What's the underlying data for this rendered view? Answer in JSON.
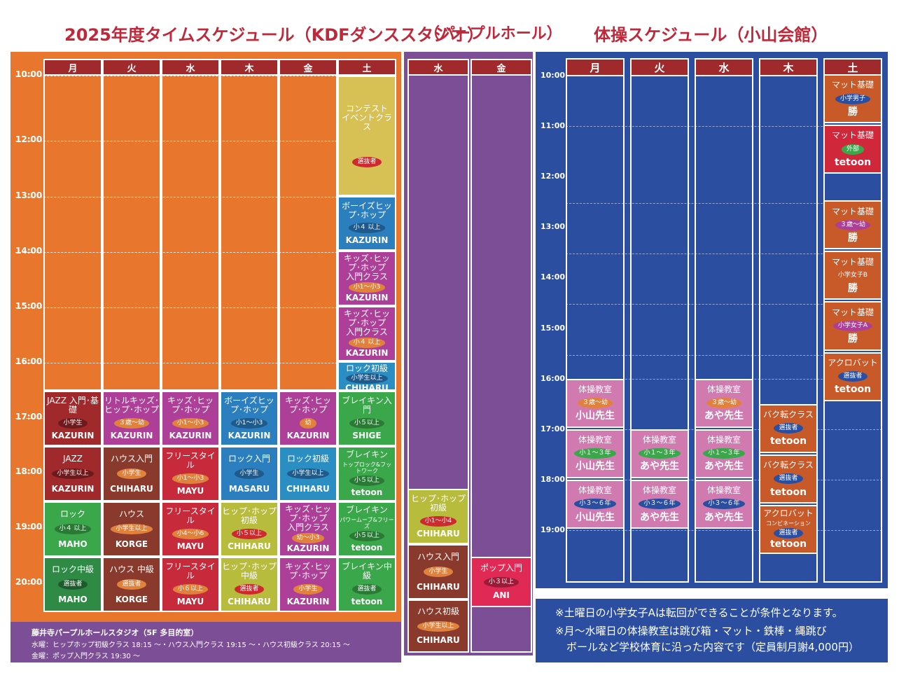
{
  "titles": {
    "kdf": "2025年度タイムスケジュール（KDFダンススタジオ）",
    "purple": "（パープルホール）",
    "taiso": "体操スケジュール（小山会館）"
  },
  "kdf": {
    "days": [
      "月",
      "火",
      "水",
      "木",
      "金",
      "土"
    ],
    "times": [
      "10:00",
      "12:00",
      "13:00",
      "14:00",
      "15:00",
      "16:00",
      "17:00",
      "18:00",
      "19:00",
      "20:00"
    ],
    "classes": [
      {
        "name": "コンテスト\nイベントクラス",
        "tag": "選抜者",
        "instructor": "",
        "col": 5,
        "start": 0,
        "span": 2,
        "bg": "#d7c155",
        "tagbg": "#cc2a2e"
      },
      {
        "name": "ボーイズヒップ･ホップ",
        "tag": "小４ 以上",
        "instructor": "KAZURIN",
        "col": 5,
        "start": 2,
        "span": 1,
        "bg": "#2b7fbf",
        "tagbg": "#1f5a8c"
      },
      {
        "name": "キッズ･ヒップ･ホップ\n入門クラス",
        "tag": "小1～小3",
        "instructor": "KAZURIN",
        "col": 5,
        "start": 3,
        "span": 1,
        "bg": "#ad3f98",
        "tagbg": "#e0823c"
      },
      {
        "name": "キッズ･ヒップ･ホップ\n入門クラス",
        "tag": "小４ 以上",
        "instructor": "KAZURIN",
        "col": 5,
        "start": 4,
        "span": 1,
        "bg": "#ad3f98",
        "tagbg": "#e0823c"
      },
      {
        "name": "ロック初級",
        "tag": "小学生以上",
        "instructor": "CHIHARU",
        "col": 5,
        "start": 5,
        "span": 1,
        "bg": "#2b8ec2",
        "tagbg": "#1f5a8c"
      },
      {
        "name": "JAZZ 入門･基礎",
        "tag": "小学生",
        "instructor": "KAZURIN",
        "col": 0,
        "start": 6,
        "span": 1,
        "bg": "#a0292b",
        "tagbg": "#6e1a1c"
      },
      {
        "name": "リトルキッズ･ヒップ･ホップ",
        "tag": "３歳～幼",
        "instructor": "KAZURIN",
        "col": 1,
        "start": 6,
        "span": 1,
        "bg": "#ad3f98",
        "tagbg": "#e0823c"
      },
      {
        "name": "キッズ･ヒップ･ホップ",
        "tag": "小1～小3",
        "instructor": "KAZURIN",
        "col": 2,
        "start": 6,
        "span": 1,
        "bg": "#ad3f98",
        "tagbg": "#e0823c"
      },
      {
        "name": "ボーイズヒップ･ホップ",
        "tag": "小1～小3",
        "instructor": "KAZURIN",
        "col": 3,
        "start": 6,
        "span": 1,
        "bg": "#2b7fbf",
        "tagbg": "#1f5a8c"
      },
      {
        "name": "キッズ･ヒップ･ホップ",
        "tag": "幼",
        "instructor": "KAZURIN",
        "col": 4,
        "start": 6,
        "span": 1,
        "bg": "#ad3f98",
        "tagbg": "#e0823c"
      },
      {
        "name": "ブレイキン入門",
        "tag": "小５以上",
        "instructor": "SHIGE",
        "col": 5,
        "start": 6,
        "span": 1,
        "bg": "#3aa84a",
        "tagbg": "#2a7a36"
      },
      {
        "name": "JAZZ",
        "tag": "小学生以上",
        "instructor": "KAZURIN",
        "col": 0,
        "start": 7,
        "span": 1,
        "bg": "#a0292b",
        "tagbg": "#6e1a1c"
      },
      {
        "name": "ハウス入門",
        "tag": "小学生",
        "instructor": "CHIHARU",
        "col": 1,
        "start": 7,
        "span": 1,
        "bg": "#8a3a2c",
        "tagbg": "#e0823c"
      },
      {
        "name": "フリースタイル",
        "tag": "小1～小3",
        "instructor": "MAYU",
        "col": 2,
        "start": 7,
        "span": 1,
        "bg": "#c72a3a",
        "tagbg": "#e0823c"
      },
      {
        "name": "ロック入門",
        "tag": "小学生",
        "instructor": "MASARU",
        "col": 3,
        "start": 7,
        "span": 1,
        "bg": "#2b7fbf",
        "tagbg": "#1f5a8c"
      },
      {
        "name": "ロック初級",
        "tag": "小学生以上",
        "instructor": "CHIHARU",
        "col": 4,
        "start": 7,
        "span": 1,
        "bg": "#2b8ec2",
        "tagbg": "#1f5a8c"
      },
      {
        "name": "ブレイキン",
        "sub": "トップロック&フットワーク",
        "tag": "小５以上",
        "instructor": "tetoon",
        "col": 5,
        "start": 7,
        "span": 1,
        "bg": "#3aa84a",
        "tagbg": "#2a7a36"
      },
      {
        "name": "ロック",
        "tag": "小４ 以上",
        "instructor": "MAHO",
        "col": 0,
        "start": 8,
        "span": 1,
        "bg": "#3aa84a",
        "tagbg": "#2a7a36"
      },
      {
        "name": "ハウス",
        "tag": "小学生以上",
        "instructor": "KORGE",
        "col": 1,
        "start": 8,
        "span": 1,
        "bg": "#8a3a2c",
        "tagbg": "#e0823c"
      },
      {
        "name": "フリースタイル",
        "tag": "小4～小6",
        "instructor": "MAYU",
        "col": 2,
        "start": 8,
        "span": 1,
        "bg": "#c72a3a",
        "tagbg": "#e0823c"
      },
      {
        "name": "ヒップ･ホップ初級",
        "tag": "小５以上",
        "instructor": "CHIHARU",
        "col": 3,
        "start": 8,
        "span": 1,
        "bg": "#b7bc3c",
        "tagbg": "#cc2a2e"
      },
      {
        "name": "キッズ･ヒップ･ホップ\n入門クラス",
        "tag": "幼～小3",
        "instructor": "KAZURIN",
        "col": 4,
        "start": 8,
        "span": 1,
        "bg": "#ad3f98",
        "tagbg": "#e0823c"
      },
      {
        "name": "ブレイキン",
        "sub": "パワームーブ&フリーズ",
        "tag": "小５以上",
        "instructor": "tetoon",
        "col": 5,
        "start": 8,
        "span": 1,
        "bg": "#3aa84a",
        "tagbg": "#2a7a36"
      },
      {
        "name": "ロック中級",
        "tag": "選抜者",
        "instructor": "MAHO",
        "col": 0,
        "start": 9,
        "span": 1,
        "bg": "#2e8a44",
        "tagbg": "#1e5a2c"
      },
      {
        "name": "ハウス 中級",
        "tag": "選抜者",
        "instructor": "KORGE",
        "col": 1,
        "start": 9,
        "span": 1,
        "bg": "#8a3a2c",
        "tagbg": "#e0823c"
      },
      {
        "name": "フリースタイル",
        "tag": "小６以上",
        "instructor": "MAYU",
        "col": 2,
        "start": 9,
        "span": 1,
        "bg": "#c72a3a",
        "tagbg": "#e0823c"
      },
      {
        "name": "ヒップ･ホップ中級",
        "tag": "選抜者",
        "instructor": "CHIHARU",
        "col": 3,
        "start": 9,
        "span": 1,
        "bg": "#b7bc3c",
        "tagbg": "#cc2a2e"
      },
      {
        "name": "キッズ･ヒップ･ホップ",
        "tag": "小学生",
        "instructor": "KAZURIN",
        "col": 4,
        "start": 9,
        "span": 1,
        "bg": "#ad3f98",
        "tagbg": "#e0823c"
      },
      {
        "name": "ブレイキン中級",
        "tag": "選抜者",
        "instructor": "tetoon",
        "col": 5,
        "start": 9,
        "span": 1,
        "bg": "#3aa84a",
        "tagbg": "#2a7a36"
      }
    ],
    "note": {
      "title": "藤井寺パープルホールスタジオ（5F 多目的室）",
      "line1": "水曜：ヒップホップ初級クラス 18:15 ～・ハウス入門クラス 19:15 ～・ハウス初級クラス 20:15 ～",
      "line2": "金曜：ポップ入門クラス 19:30 ～"
    }
  },
  "purple": {
    "days": [
      "水",
      "金"
    ],
    "classes": [
      {
        "name": "ヒップ･ホップ初級",
        "tag": "小1～小4",
        "instructor": "CHIHARU",
        "col": 0,
        "start": 0,
        "span": 1,
        "bg": "#b7bc3c",
        "tagbg": "#cc2a2e"
      },
      {
        "name": "ハウス入門",
        "tag": "小学生",
        "instructor": "CHIHARU",
        "col": 0,
        "start": 1,
        "span": 1,
        "bg": "#8a3a2c",
        "tagbg": "#e0823c"
      },
      {
        "name": "ハウス初級",
        "tag": "小学生以上",
        "instructor": "CHIHARU",
        "col": 0,
        "start": 2,
        "span": 1,
        "bg": "#8a3a2c",
        "tagbg": "#e0823c"
      },
      {
        "name": "ポップ入門",
        "tag": "小３以上",
        "instructor": "ANI",
        "col": 1,
        "start": 1,
        "span": 1,
        "bg": "#e02a55",
        "tagbg": "#9a1a38"
      }
    ]
  },
  "taiso": {
    "days": [
      "月",
      "火",
      "水",
      "木",
      "土"
    ],
    "times": [
      "10:00",
      "11:00",
      "12:00",
      "13:00",
      "14:00",
      "15:00",
      "16:00",
      "17:00",
      "18:00",
      "19:00"
    ],
    "classes": [
      {
        "name": "体操教室",
        "tag": "３歳～幼",
        "instructor": "小山先生",
        "col": 0,
        "start": 6,
        "span": 1,
        "bg": "#d07ab0",
        "tagbg": "#e0823c"
      },
      {
        "name": "体操教室",
        "tag": "小１～３年",
        "instructor": "小山先生",
        "col": 0,
        "start": 7,
        "span": 1,
        "bg": "#d07ab0",
        "tagbg": "#3aa84a"
      },
      {
        "name": "体操教室",
        "tag": "小３～６年",
        "instructor": "小山先生",
        "col": 0,
        "start": 8,
        "span": 1,
        "bg": "#d07ab0",
        "tagbg": "#2b4fa0"
      },
      {
        "name": "体操教室",
        "tag": "小１～３年",
        "instructor": "あや先生",
        "col": 1,
        "start": 7,
        "span": 1,
        "bg": "#d07ab0",
        "tagbg": "#3aa84a"
      },
      {
        "name": "体操教室",
        "tag": "小３～６年",
        "instructor": "あや先生",
        "col": 1,
        "start": 8,
        "span": 1,
        "bg": "#d07ab0",
        "tagbg": "#2b4fa0"
      },
      {
        "name": "体操教室",
        "tag": "３歳～幼",
        "instructor": "あや先生",
        "col": 2,
        "start": 6,
        "span": 1,
        "bg": "#d07ab0",
        "tagbg": "#e0823c"
      },
      {
        "name": "体操教室",
        "tag": "小１～３年",
        "instructor": "あや先生",
        "col": 2,
        "start": 7,
        "span": 1,
        "bg": "#d07ab0",
        "tagbg": "#3aa84a"
      },
      {
        "name": "体操教室",
        "tag": "小３～６年",
        "instructor": "あや先生",
        "col": 2,
        "start": 8,
        "span": 1,
        "bg": "#d07ab0",
        "tagbg": "#2b4fa0"
      },
      {
        "name": "バク転クラス",
        "tag": "選抜者",
        "instructor": "tetoon",
        "col": 3,
        "start": 6.5,
        "span": 1,
        "bg": "#c85a2a",
        "tagbg": "#2b4fa0"
      },
      {
        "name": "バク転クラス",
        "tag": "選抜者",
        "instructor": "tetoon",
        "col": 3,
        "start": 7.5,
        "span": 1,
        "bg": "#c85a2a",
        "tagbg": "#2b4fa0"
      },
      {
        "name": "アクロバット",
        "sub": "コンビネーション",
        "tag": "選抜者",
        "instructor": "tetoon",
        "col": 3,
        "start": 8.5,
        "span": 1,
        "bg": "#c85a2a",
        "tagbg": "#2b4fa0"
      },
      {
        "name": "マット基礎",
        "tag": "小学男子",
        "instructor": "勝",
        "col": 4,
        "start": 0,
        "span": 1,
        "bg": "#c85a2a",
        "tagbg": "#2b4fa0"
      },
      {
        "name": "マット基礎",
        "tag": "外部",
        "instructor": "tetoon",
        "col": 4,
        "start": 1,
        "span": 1,
        "bg": "#d0283a",
        "tagbg": "#3aa84a"
      },
      {
        "name": "マット基礎",
        "tag": "３歳～幼",
        "instructor": "勝",
        "col": 4,
        "start": 2.5,
        "span": 1,
        "bg": "#c85a2a",
        "tagbg": "#ad3f98"
      },
      {
        "name": "マット基礎",
        "tag": "小学女子B",
        "instructor": "勝",
        "col": 4,
        "start": 3.5,
        "span": 1,
        "bg": "#c85a2a",
        "tagbg": "#c85a2a"
      },
      {
        "name": "マット基礎",
        "tag": "小学女子A",
        "instructor": "勝",
        "col": 4,
        "start": 4.5,
        "span": 1,
        "bg": "#c85a2a",
        "tagbg": "#ad3f98"
      },
      {
        "name": "アクロバット",
        "tag": "選抜者",
        "instructor": "tetoon",
        "col": 4,
        "start": 5.5,
        "span": 1,
        "bg": "#c85a2a",
        "tagbg": "#2b4fa0"
      }
    ],
    "note": {
      "line1": "※土曜日の小学女子Aは転回ができることが条件となります。",
      "line2": "※月～水曜日の体操教室は跳び箱・マット・鉄棒・縄跳び",
      "line3": "ボールなど学校体育に沿った内容です（定員制月謝4,000円）"
    }
  }
}
